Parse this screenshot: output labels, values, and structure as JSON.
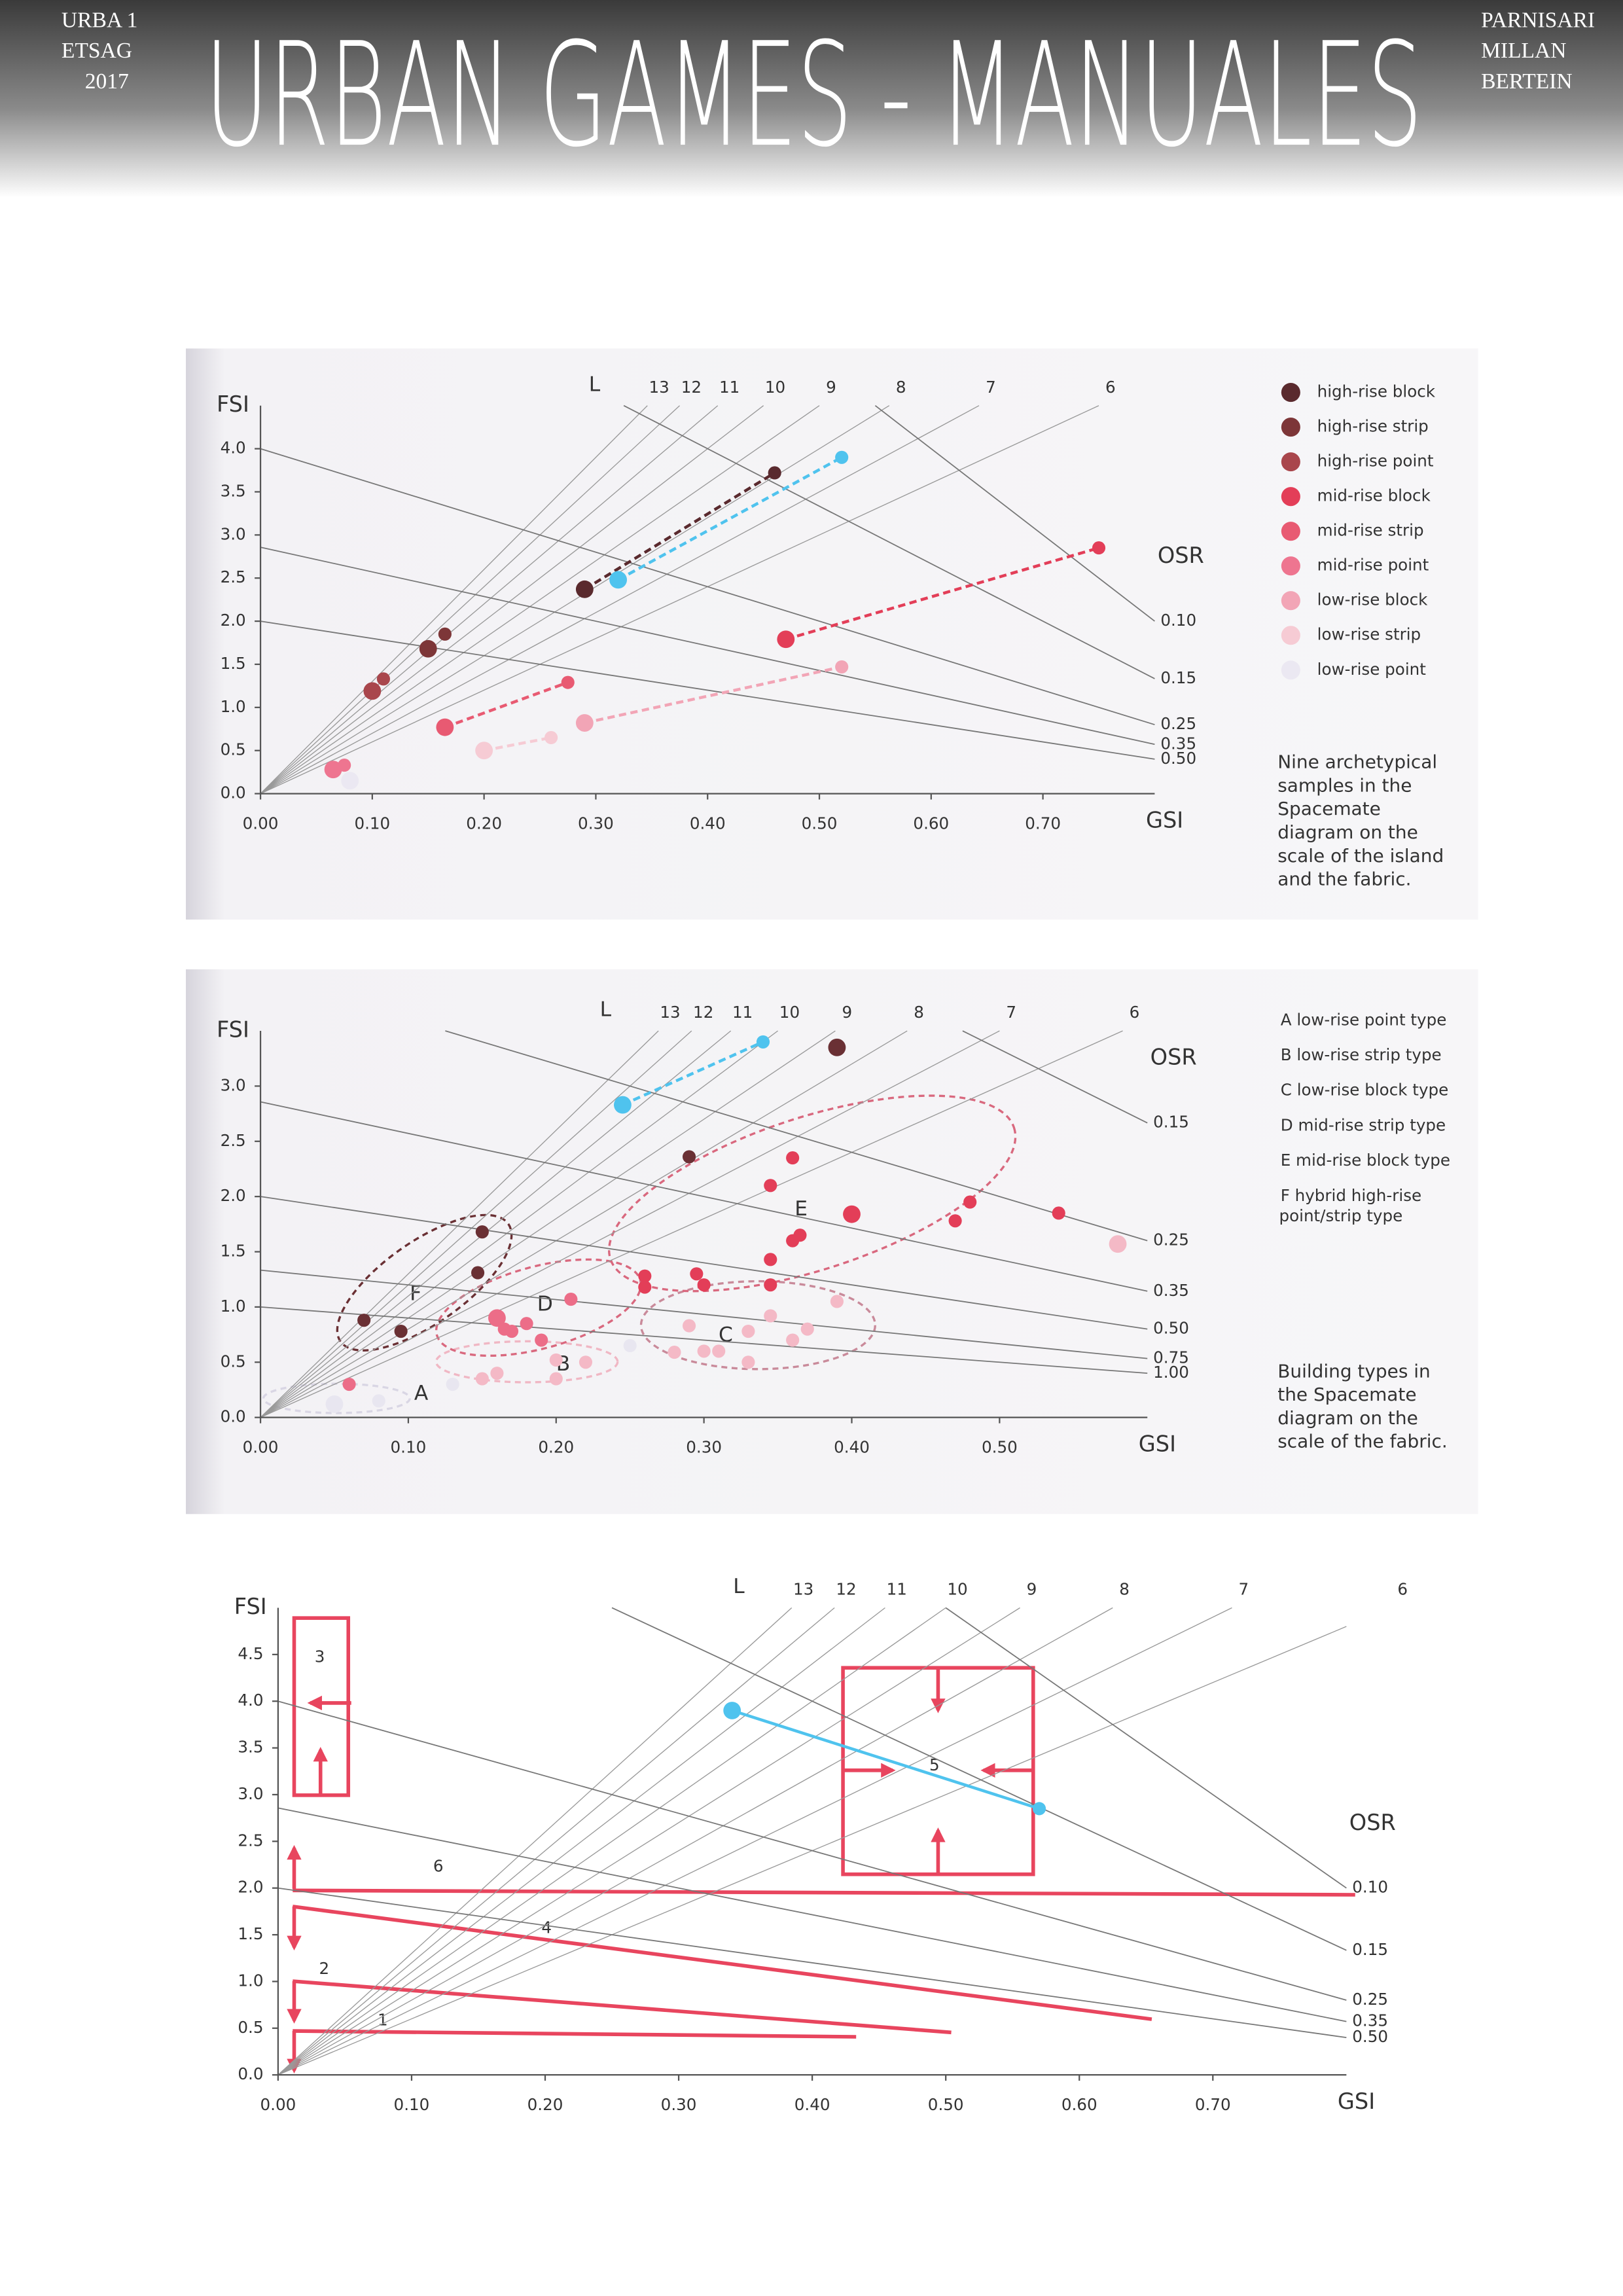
{
  "header": {
    "left": [
      "URBA 1",
      "ETSAG",
      "2017"
    ],
    "title": "URBAN GAMES - MANUALES",
    "right": [
      "PARNISARI",
      "MILLAN",
      "BERTEIN"
    ]
  },
  "chart_data": [
    {
      "type": "scatter",
      "x_label": "GSI",
      "y_label": "FSI",
      "l_label": "L",
      "osr_label": "OSR",
      "xlim": [
        0,
        0.8
      ],
      "ylim": [
        0,
        4.5
      ],
      "xticks": [
        {
          "value": 0,
          "label": "0.00"
        },
        {
          "value": 0.1,
          "label": "0.10"
        },
        {
          "value": 0.2,
          "label": "0.20"
        },
        {
          "value": 0.3,
          "label": "0.30"
        },
        {
          "value": 0.4,
          "label": "0.40"
        },
        {
          "value": 0.5,
          "label": "0.50"
        },
        {
          "value": 0.6,
          "label": "0.60"
        },
        {
          "value": 0.7,
          "label": "0.70"
        }
      ],
      "yticks": [
        {
          "value": 0,
          "label": "0.0"
        },
        {
          "value": 0.5,
          "label": "0.5"
        },
        {
          "value": 1,
          "label": "1.0"
        },
        {
          "value": 1.5,
          "label": "1.5"
        },
        {
          "value": 2,
          "label": "2.0"
        },
        {
          "value": 2.5,
          "label": "2.5"
        },
        {
          "value": 3,
          "label": "3.0"
        },
        {
          "value": 3.5,
          "label": "3.5"
        },
        {
          "value": 4,
          "label": "4.0"
        }
      ],
      "l_values": [
        13,
        12,
        11,
        10,
        9,
        8,
        7,
        6
      ],
      "osr_values": [
        {
          "value": 0.1,
          "label": "0.10"
        },
        {
          "value": 0.15,
          "label": "0.15"
        },
        {
          "value": 0.25,
          "label": "0.25"
        },
        {
          "value": 0.35,
          "label": "0.35"
        },
        {
          "value": 0.5,
          "label": "0.50"
        }
      ],
      "series": [
        {
          "name": "high-rise block",
          "color": "#5a2a2e",
          "line": "dashed",
          "x": [
            0.29,
            0.46
          ],
          "y": [
            2.37,
            3.72
          ]
        },
        {
          "name": "high-rise strip",
          "color": "#7d3638",
          "x": [
            0.15,
            0.165
          ],
          "y": [
            1.68,
            1.85
          ]
        },
        {
          "name": "high-rise point",
          "color": "#a9464c",
          "x": [
            0.1,
            0.11
          ],
          "y": [
            1.19,
            1.33
          ]
        },
        {
          "name": "mid-rise block",
          "color": "#e33e58",
          "line": "dashed",
          "x": [
            0.47,
            0.75
          ],
          "y": [
            1.79,
            2.85
          ]
        },
        {
          "name": "mid-rise strip",
          "color": "#e85a72",
          "line": "dashed",
          "x": [
            0.165,
            0.275
          ],
          "y": [
            0.77,
            1.29
          ]
        },
        {
          "name": "mid-rise point",
          "color": "#ee7590",
          "x": [
            0.065,
            0.075
          ],
          "y": [
            0.28,
            0.33
          ]
        },
        {
          "name": "low-rise block",
          "color": "#f2a5b6",
          "line": "dashed",
          "x": [
            0.29,
            0.52
          ],
          "y": [
            0.82,
            1.47
          ]
        },
        {
          "name": "low-rise strip",
          "color": "#f6cbd4",
          "line": "dashed",
          "x": [
            0.2,
            0.26
          ],
          "y": [
            0.5,
            0.65
          ]
        },
        {
          "name": "low-rise point",
          "color": "#ebe8f2",
          "x": [
            0.08
          ],
          "y": [
            0.15
          ]
        },
        {
          "color": "#4fc3ee",
          "line": "dashed",
          "x": [
            0.32,
            0.52
          ],
          "y": [
            2.48,
            3.9
          ]
        }
      ],
      "caption": [
        "Nine archetypical",
        "samples in the",
        "Spacemate",
        "diagram on the",
        "scale of the island",
        "and the fabric."
      ]
    },
    {
      "type": "scatter",
      "x_label": "GSI",
      "y_label": "FSI",
      "l_label": "L",
      "osr_label": "OSR",
      "xlim": [
        0,
        0.6
      ],
      "ylim": [
        0,
        3.5
      ],
      "xticks": [
        {
          "value": 0,
          "label": "0.00"
        },
        {
          "value": 0.1,
          "label": "0.10"
        },
        {
          "value": 0.2,
          "label": "0.20"
        },
        {
          "value": 0.3,
          "label": "0.30"
        },
        {
          "value": 0.4,
          "label": "0.40"
        },
        {
          "value": 0.5,
          "label": "0.50"
        }
      ],
      "yticks": [
        {
          "value": 0,
          "label": "0.0"
        },
        {
          "value": 0.5,
          "label": "0.5"
        },
        {
          "value": 1,
          "label": "1.0"
        },
        {
          "value": 1.5,
          "label": "1.5"
        },
        {
          "value": 2,
          "label": "2.0"
        },
        {
          "value": 2.5,
          "label": "2.5"
        },
        {
          "value": 3,
          "label": "3.0"
        }
      ],
      "l_values": [
        13,
        12,
        11,
        10,
        9,
        8,
        7,
        6
      ],
      "osr_values": [
        {
          "value": 0.15,
          "label": "0.15"
        },
        {
          "value": 0.25,
          "label": "0.25"
        },
        {
          "value": 0.35,
          "label": "0.35"
        },
        {
          "value": 0.5,
          "label": "0.50"
        },
        {
          "value": 0.75,
          "label": "0.75"
        },
        {
          "value": 1,
          "label": "1.00"
        }
      ],
      "series": [
        {
          "color": "#4fc3ee",
          "line": "dashed",
          "x": [
            0.245,
            0.34
          ],
          "y": [
            2.83,
            3.4
          ]
        },
        {
          "color": "#6a3034",
          "x": [
            0.39,
            0.29,
            0.15,
            0.147,
            0.07,
            0.095
          ],
          "y": [
            3.35,
            2.36,
            1.68,
            1.31,
            0.88,
            0.78
          ]
        },
        {
          "color": "#e33e58",
          "x": [
            0.4,
            0.345,
            0.36,
            0.365,
            0.36,
            0.345,
            0.26,
            0.26,
            0.295,
            0.3,
            0.345,
            0.47,
            0.48,
            0.54
          ],
          "y": [
            1.84,
            2.1,
            2.35,
            1.65,
            1.6,
            1.43,
            1.28,
            1.18,
            1.3,
            1.2,
            1.2,
            1.78,
            1.95,
            1.85
          ]
        },
        {
          "color": "#ec6d88",
          "x": [
            0.16,
            0.165,
            0.17,
            0.18,
            0.19,
            0.21,
            0.06
          ],
          "y": [
            0.9,
            0.8,
            0.78,
            0.85,
            0.7,
            1.07,
            0.3
          ]
        },
        {
          "color": "#f4b9c6",
          "x": [
            0.58,
            0.39,
            0.345,
            0.37,
            0.33,
            0.36,
            0.29,
            0.3,
            0.31,
            0.28,
            0.33,
            0.2,
            0.22,
            0.16,
            0.15,
            0.2
          ],
          "y": [
            1.57,
            1.05,
            0.92,
            0.8,
            0.78,
            0.7,
            0.83,
            0.6,
            0.6,
            0.59,
            0.5,
            0.52,
            0.5,
            0.4,
            0.35,
            0.35
          ]
        },
        {
          "color": "#e8e6f0",
          "x": [
            0.05,
            0.08,
            0.25,
            0.13
          ],
          "y": [
            0.12,
            0.15,
            0.65,
            0.3
          ]
        }
      ],
      "annotations": [
        "A",
        "B",
        "C",
        "D",
        "E",
        "F"
      ],
      "legend": [
        [
          "A  low-rise point type"
        ],
        [
          "B  low-rise strip type"
        ],
        [
          "C  low-rise block type"
        ],
        [
          "D  mid-rise strip type"
        ],
        [
          "E  mid-rise block type"
        ],
        [
          "F  hybrid high-rise",
          "point/strip type"
        ]
      ],
      "caption": [
        "Building types in",
        "the Spacemate",
        "diagram on the",
        "scale of the fabric."
      ]
    },
    {
      "type": "scatter",
      "x_label": "GSI",
      "y_label": "FSI",
      "l_label": "L",
      "osr_label": "OSR",
      "xlim": [
        0,
        0.8
      ],
      "ylim": [
        0,
        5
      ],
      "xticks": [
        {
          "value": 0,
          "label": "0.00"
        },
        {
          "value": 0.1,
          "label": "0.10"
        },
        {
          "value": 0.2,
          "label": "0.20"
        },
        {
          "value": 0.3,
          "label": "0.30"
        },
        {
          "value": 0.4,
          "label": "0.40"
        },
        {
          "value": 0.5,
          "label": "0.50"
        },
        {
          "value": 0.6,
          "label": "0.60"
        },
        {
          "value": 0.7,
          "label": "0.70"
        }
      ],
      "yticks": [
        {
          "value": 0,
          "label": "0.0"
        },
        {
          "value": 0.5,
          "label": "0.5"
        },
        {
          "value": 1,
          "label": "1.0"
        },
        {
          "value": 1.5,
          "label": "1.5"
        },
        {
          "value": 2,
          "label": "2.0"
        },
        {
          "value": 2.5,
          "label": "2.5"
        },
        {
          "value": 3,
          "label": "3.0"
        },
        {
          "value": 3.5,
          "label": "3.5"
        },
        {
          "value": 4,
          "label": "4.0"
        },
        {
          "value": 4.5,
          "label": "4.5"
        }
      ],
      "l_values": [
        13,
        12,
        11,
        10,
        9,
        8,
        7,
        6
      ],
      "osr_values": [
        {
          "value": 0.1,
          "label": "0.10"
        },
        {
          "value": 0.15,
          "label": "0.15"
        },
        {
          "value": 0.25,
          "label": "0.25"
        },
        {
          "value": 0.35,
          "label": "0.35"
        },
        {
          "value": 0.5,
          "label": "0.50"
        }
      ],
      "series": [
        {
          "color": "#4fc3ee",
          "line": "solid",
          "x": [
            0.34,
            0.57
          ],
          "y": [
            3.9,
            2.85
          ]
        }
      ],
      "annotations": [
        "3",
        "5",
        "6",
        "4",
        "2",
        "1"
      ]
    }
  ]
}
